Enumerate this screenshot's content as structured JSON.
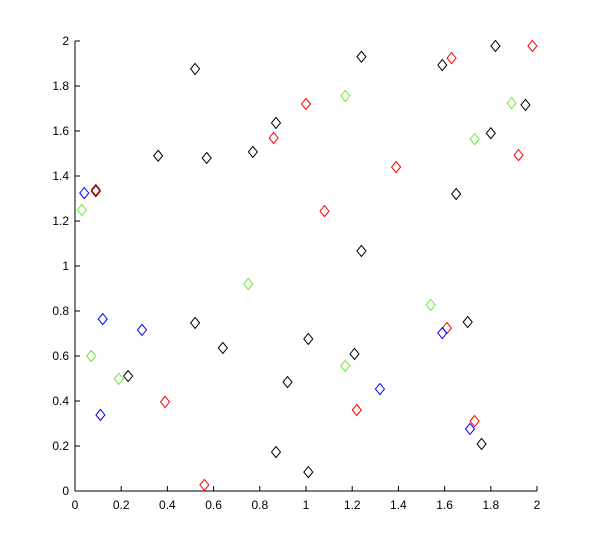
{
  "chart_data": {
    "type": "scatter",
    "marker": "diamond",
    "xlim": [
      0,
      2
    ],
    "ylim": [
      0,
      2
    ],
    "xticks": [
      0,
      0.2,
      0.4,
      0.6,
      0.8,
      1,
      1.2,
      1.4,
      1.6,
      1.8,
      2
    ],
    "yticks": [
      0,
      0.2,
      0.4,
      0.6,
      0.8,
      1,
      1.2,
      1.4,
      1.6,
      1.8,
      2
    ],
    "series": [
      {
        "color": "#000000",
        "x": [
          0.09,
          0.52,
          0.36,
          0.57,
          0.77,
          0.87,
          1.24,
          1.59,
          1.82,
          1.95,
          1.8,
          1.65,
          1.24,
          0.52,
          0.64,
          0.23,
          0.92,
          1.01,
          1.21,
          1.7,
          1.76,
          0.87,
          1.01
        ],
        "values": [
          1.333,
          1.876,
          1.49,
          1.48,
          1.507,
          1.636,
          1.93,
          1.893,
          1.978,
          1.716,
          1.59,
          1.32,
          1.067,
          0.747,
          0.636,
          0.511,
          0.484,
          0.676,
          0.609,
          0.751,
          0.209,
          0.173,
          0.084
        ]
      },
      {
        "color": "#ff0000",
        "x": [
          0.09,
          1.0,
          0.86,
          1.08,
          1.39,
          1.63,
          1.98,
          1.92,
          1.61,
          0.39,
          1.22,
          1.73,
          0.56
        ],
        "values": [
          1.338,
          1.72,
          1.569,
          1.244,
          1.44,
          1.924,
          1.978,
          1.493,
          0.724,
          0.396,
          0.36,
          0.311,
          0.027
        ]
      },
      {
        "color": "#0000ff",
        "x": [
          0.04,
          0.12,
          0.29,
          0.11,
          1.32,
          1.59,
          1.71
        ],
        "values": [
          1.324,
          0.764,
          0.716,
          0.338,
          0.453,
          0.702,
          0.276
        ]
      },
      {
        "color": "#66ee33",
        "x": [
          0.03,
          0.07,
          0.19,
          0.75,
          1.17,
          1.17,
          1.54,
          1.73,
          1.89
        ],
        "values": [
          1.249,
          0.6,
          0.498,
          0.92,
          0.556,
          1.756,
          0.827,
          1.564,
          1.724
        ]
      }
    ]
  }
}
